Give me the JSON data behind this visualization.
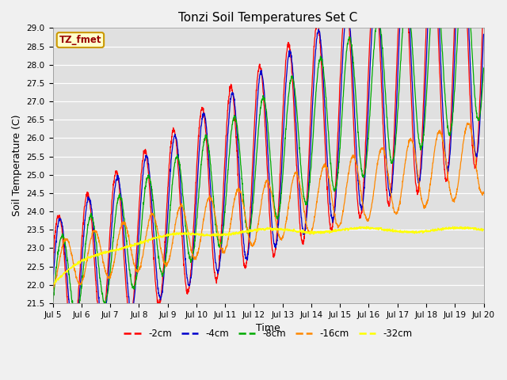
{
  "title": "Tonzi Soil Temperatures Set C",
  "xlabel": "Time",
  "ylabel": "Soil Temperature (C)",
  "ylim": [
    21.5,
    29.0
  ],
  "colors": {
    "-2cm": "#ff0000",
    "-4cm": "#0000cc",
    "-8cm": "#00aa00",
    "-16cm": "#ff8800",
    "-32cm": "#ffff00"
  },
  "legend_label": "TZ_fmet",
  "legend_box_facecolor": "#ffffcc",
  "legend_box_edgecolor": "#cc9900",
  "plot_bg_color": "#e0e0e0",
  "fig_bg_color": "#f0f0f0",
  "tick_dates": [
    "Jul 5",
    "Jul 6",
    "Jul 7",
    "Jul 8",
    "Jul 9",
    "Jul 10",
    "Jul 11",
    "Jul 12",
    "Jul 13",
    "Jul 14",
    "Jul 15",
    "Jul 16",
    "Jul 17",
    "Jul 18",
    "Jul 19",
    "Jul 20"
  ],
  "yticks": [
    21.5,
    22.0,
    22.5,
    23.0,
    23.5,
    24.0,
    24.5,
    25.0,
    25.5,
    26.0,
    26.5,
    27.0,
    27.5,
    28.0,
    28.5,
    29.0
  ],
  "n_points": 2000
}
